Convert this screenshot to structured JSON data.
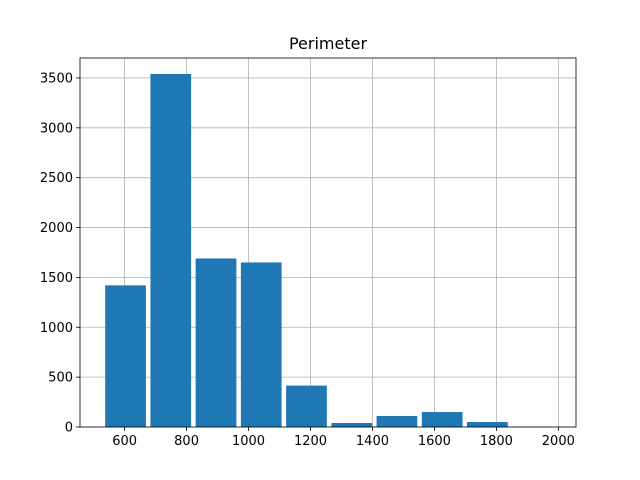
{
  "chart_data": {
    "type": "bar",
    "title": "Perimeter",
    "xlabel": "",
    "ylabel": "",
    "grid": true,
    "bar_color": "#1f77b4",
    "x_ticks": [
      600,
      800,
      1000,
      1200,
      1400,
      1600,
      1800,
      2000
    ],
    "y_ticks": [
      0,
      500,
      1000,
      1500,
      2000,
      2500,
      3000,
      3500
    ],
    "xlim": [
      456,
      2057
    ],
    "ylim": [
      0,
      3700
    ],
    "bins": [
      {
        "start": 530,
        "end": 676,
        "value": 1420
      },
      {
        "start": 676,
        "end": 822,
        "value": 3540
      },
      {
        "start": 822,
        "end": 968,
        "value": 1690
      },
      {
        "start": 968,
        "end": 1114,
        "value": 1650
      },
      {
        "start": 1114,
        "end": 1260,
        "value": 415
      },
      {
        "start": 1260,
        "end": 1406,
        "value": 40
      },
      {
        "start": 1406,
        "end": 1552,
        "value": 110
      },
      {
        "start": 1552,
        "end": 1698,
        "value": 150
      },
      {
        "start": 1698,
        "end": 1844,
        "value": 50
      },
      {
        "start": 1844,
        "end": 1990,
        "value": 5
      }
    ]
  }
}
